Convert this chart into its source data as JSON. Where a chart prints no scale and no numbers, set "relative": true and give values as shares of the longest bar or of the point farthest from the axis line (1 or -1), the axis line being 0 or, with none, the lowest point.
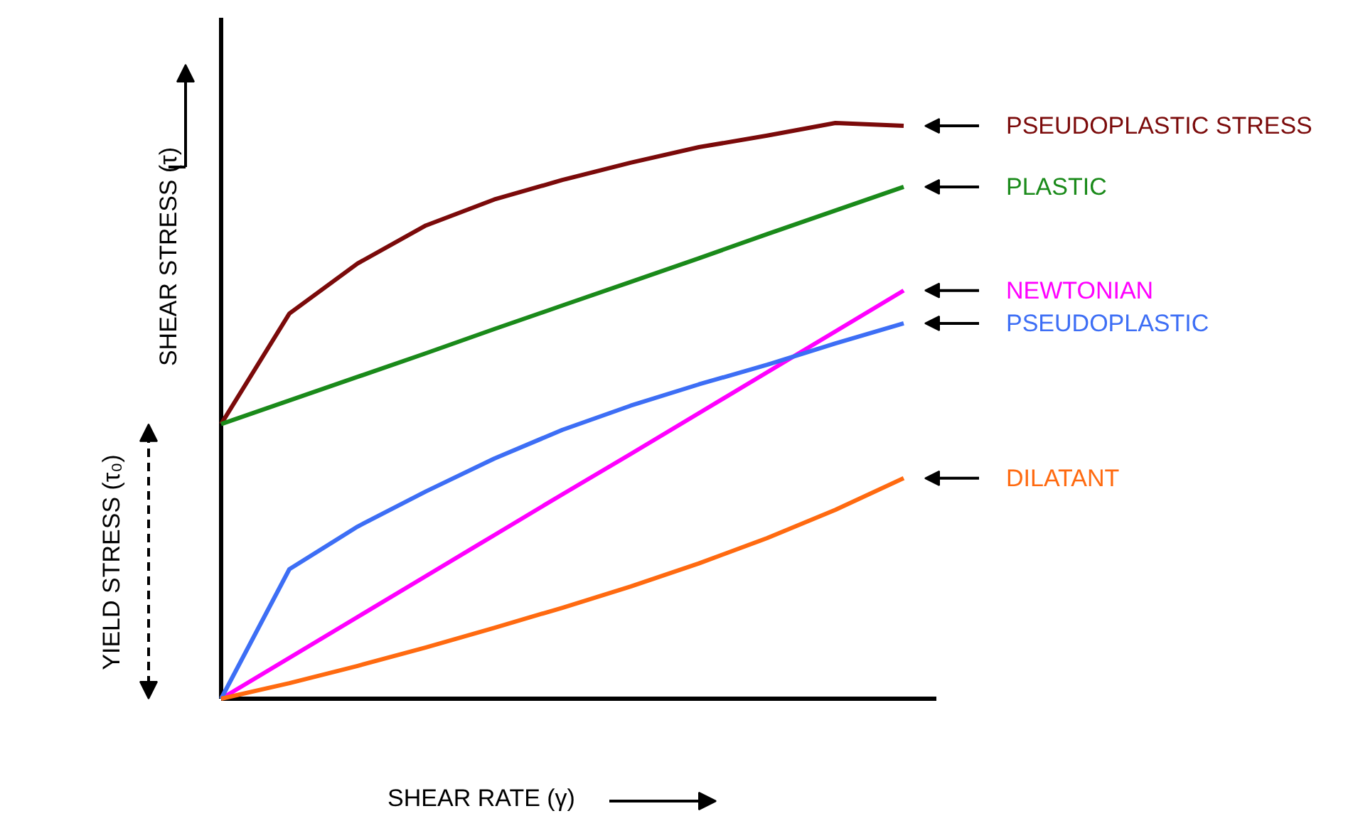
{
  "chart_data": {
    "type": "line",
    "relative": true,
    "grid": false,
    "xlabel": "SHEAR RATE (γ)",
    "ylabel": "SHEAR STRESS (τ)",
    "annotations": [
      "YIELD STRESS (τ₀)"
    ],
    "categories": [
      null,
      null,
      null,
      null,
      null,
      null,
      null,
      null,
      null,
      null,
      null
    ],
    "series": [
      {
        "name": "PSEUDOPLASTIC STRESS",
        "color": "#7b0a0a",
        "values": [
          0.477,
          0.669,
          0.756,
          0.822,
          0.867,
          0.901,
          0.931,
          0.958,
          0.978,
          1.0,
          0.995
        ]
      },
      {
        "name": "PLASTIC",
        "color": "#1a8a1a",
        "values": [
          0.477,
          0.518,
          0.559,
          0.6,
          0.642,
          0.683,
          0.724,
          0.765,
          0.807,
          0.848,
          0.889
        ]
      },
      {
        "name": "NEWTONIAN",
        "color": "#ff00ff",
        "values": [
          0,
          0.071,
          0.142,
          0.213,
          0.284,
          0.355,
          0.425,
          0.496,
          0.567,
          0.638,
          0.709
        ]
      },
      {
        "name": "PSEUDOPLASTIC",
        "color": "#3d6ef5",
        "values": [
          0,
          0.225,
          0.299,
          0.36,
          0.417,
          0.467,
          0.509,
          0.546,
          0.58,
          0.617,
          0.652
        ]
      },
      {
        "name": "DILATANT",
        "color": "#ff6a10",
        "values": [
          0,
          0.027,
          0.057,
          0.089,
          0.123,
          0.158,
          0.195,
          0.235,
          0.279,
          0.328,
          0.383
        ]
      }
    ]
  }
}
